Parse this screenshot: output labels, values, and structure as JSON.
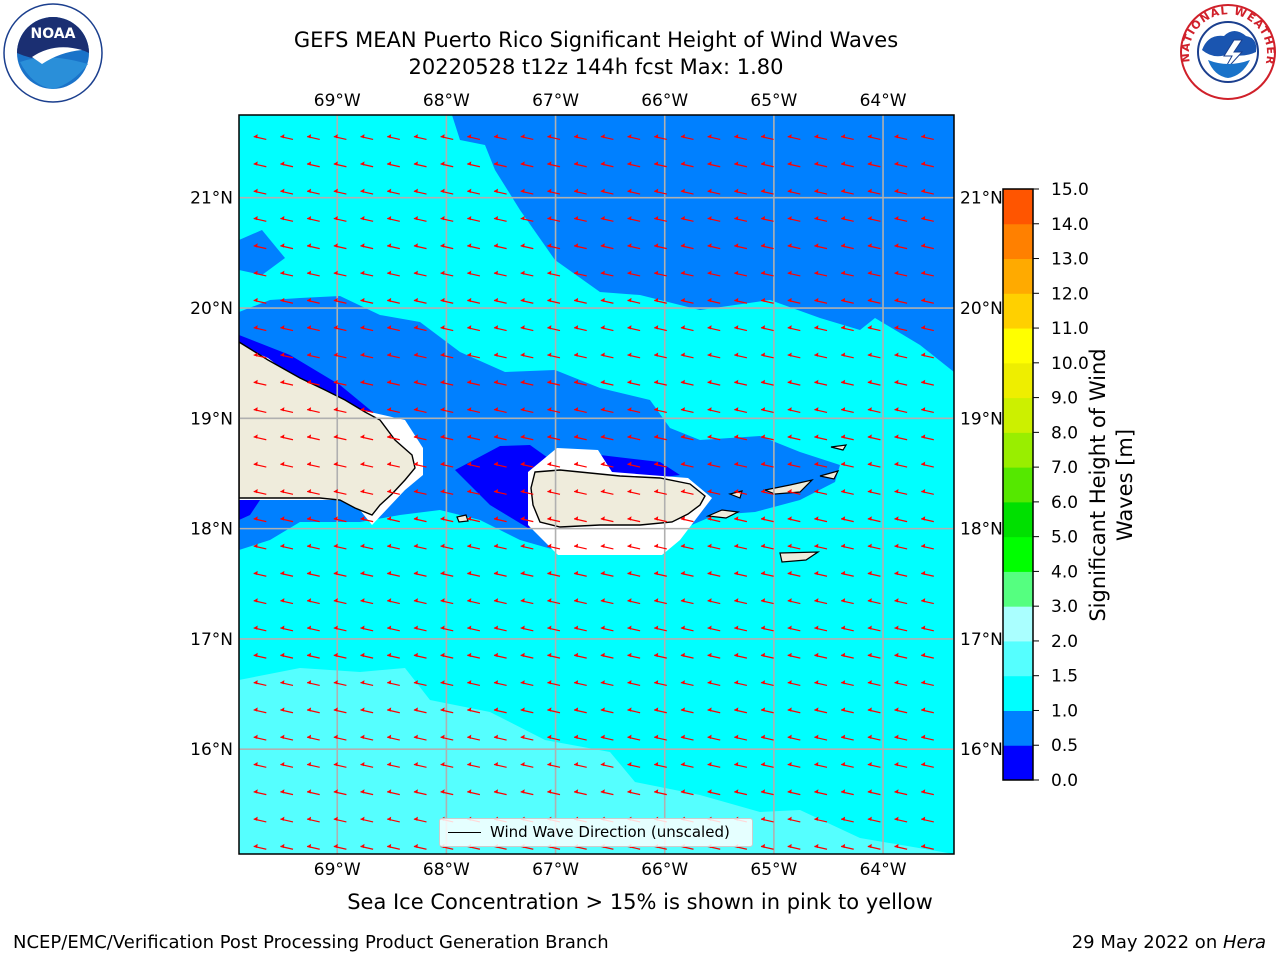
{
  "title": {
    "line1": "GEFS MEAN Puerto Rico Significant Height of Wind Waves",
    "line2": "20220528 t12z 144h fcst   Max: 1.80"
  },
  "logos": {
    "noaa": {
      "text": "NOAA",
      "icon": "noaa-logo-icon"
    },
    "nws": {
      "text": "NATIONAL WEATHER SERVICE",
      "icon": "nws-logo-icon"
    }
  },
  "map": {
    "longitude_ticks": [
      "69°W",
      "68°W",
      "67°W",
      "66°W",
      "65°W",
      "64°W"
    ],
    "latitude_ticks": [
      "21°N",
      "20°N",
      "19°N",
      "18°N",
      "17°N",
      "16°N"
    ],
    "extent": {
      "lon_min": -69.9,
      "lon_max": -63.35,
      "lat_min": 15.05,
      "lat_max": 21.75
    },
    "arrow_color": "#ff0000",
    "land_color": "#efecdc"
  },
  "legend": {
    "label": "Wind Wave Direction (unscaled)"
  },
  "colorbar": {
    "label": "Significant Height of Wind Waves [m]",
    "levels": [
      0.0,
      0.5,
      1.0,
      1.5,
      2.0,
      3.0,
      4.0,
      5.0,
      6.0,
      7.0,
      8.0,
      9.0,
      10.0,
      11.0,
      12.0,
      13.0,
      14.0,
      15.0
    ],
    "tick_labels": [
      "0.0",
      "0.5",
      "1.0",
      "1.5",
      "2.0",
      "3.0",
      "4.0",
      "5.0",
      "6.0",
      "7.0",
      "8.0",
      "9.0",
      "10.0",
      "11.0",
      "12.0",
      "13.0",
      "14.0",
      "15.0"
    ],
    "colors": [
      "#0000ff",
      "#0080ff",
      "#00ffff",
      "#55ffff",
      "#aaffff",
      "#55ff80",
      "#00ff00",
      "#00e000",
      "#55e800",
      "#99ee00",
      "#ccf000",
      "#eeee00",
      "#ffff00",
      "#ffd000",
      "#ffaa00",
      "#ff8000",
      "#ff5500",
      "#ff0000"
    ]
  },
  "ice_note": "Sea Ice Concentration > 15% is shown in pink to yellow",
  "footer": {
    "left": "NCEP/EMC/Verification Post Processing Product Generation Branch",
    "right_date": "29 May 2022 on ",
    "right_host": "Hera"
  }
}
